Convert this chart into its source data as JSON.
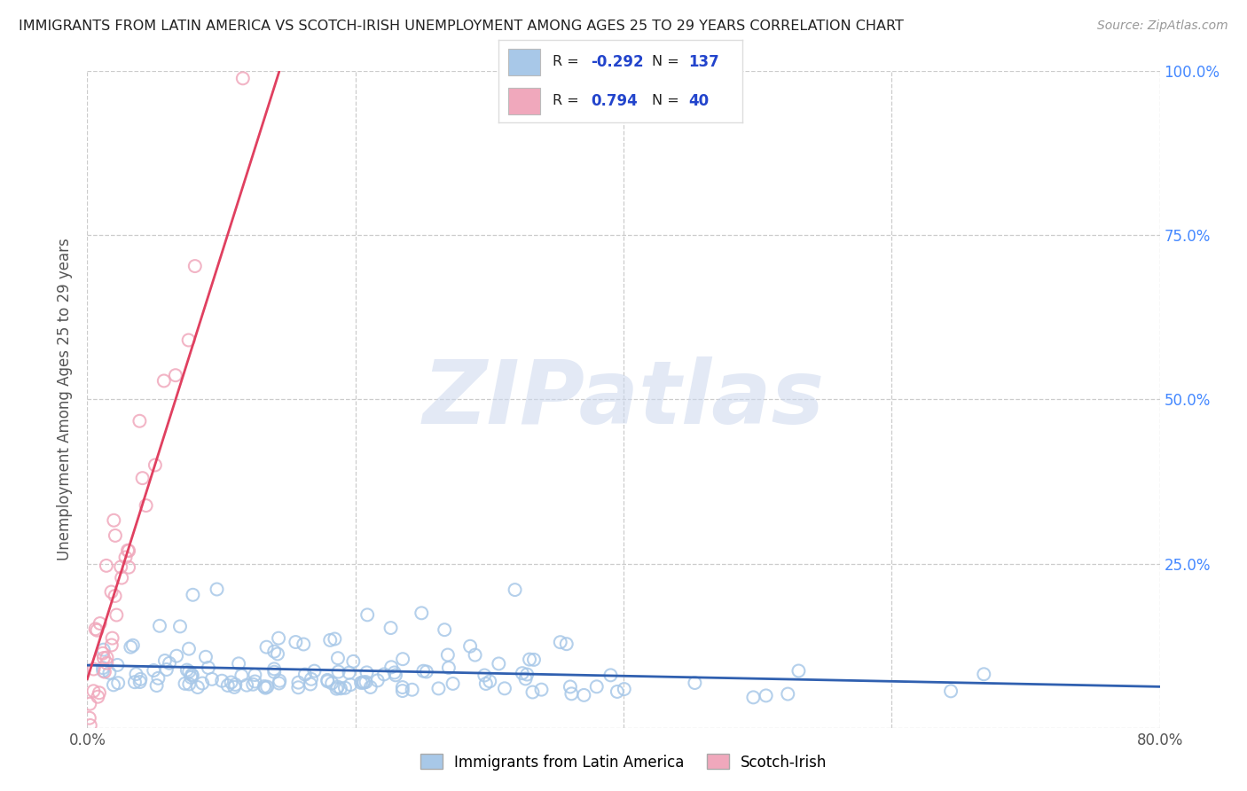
{
  "title": "IMMIGRANTS FROM LATIN AMERICA VS SCOTCH-IRISH UNEMPLOYMENT AMONG AGES 25 TO 29 YEARS CORRELATION CHART",
  "source": "Source: ZipAtlas.com",
  "ylabel": "Unemployment Among Ages 25 to 29 years",
  "legend_labels": [
    "Immigrants from Latin America",
    "Scotch-Irish"
  ],
  "blue_R": -0.292,
  "blue_N": 137,
  "pink_R": 0.794,
  "pink_N": 40,
  "blue_color": "#a8c8e8",
  "pink_color": "#f0a8bc",
  "blue_line_color": "#3060b0",
  "pink_line_color": "#e04060",
  "xlim": [
    0.0,
    0.8
  ],
  "ylim": [
    0.0,
    1.0
  ],
  "xticks": [
    0.0,
    0.2,
    0.4,
    0.6,
    0.8
  ],
  "yticks": [
    0.0,
    0.25,
    0.5,
    0.75,
    1.0
  ],
  "watermark_text": "ZIPatlas",
  "background_color": "#ffffff",
  "grid_color": "#cccccc",
  "title_color": "#222222",
  "right_axis_color": "#4488ff"
}
